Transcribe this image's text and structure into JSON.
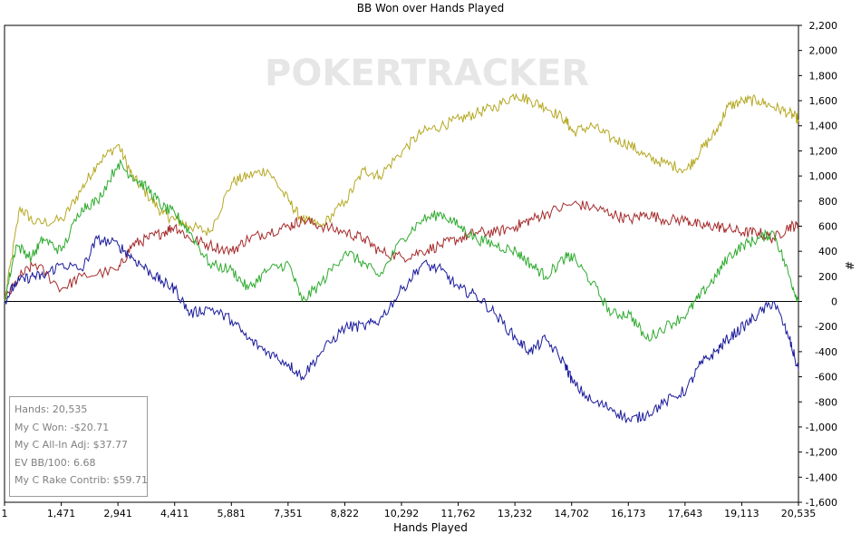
{
  "chart_data": {
    "type": "line",
    "title": "BB Won over Hands Played",
    "xlabel": "Hands Played",
    "ylabel": "#",
    "xlim": [
      1,
      20535
    ],
    "ylim": [
      -1600,
      2200
    ],
    "x_ticks": [
      "1",
      "1,471",
      "2,941",
      "4,411",
      "5,881",
      "7,351",
      "8,822",
      "10,292",
      "11,762",
      "13,232",
      "14,702",
      "16,173",
      "17,643",
      "19,113",
      "20,535"
    ],
    "y_ticks": [
      "2,200",
      "2,000",
      "1,800",
      "1,600",
      "1,400",
      "1,200",
      "1,000",
      "800",
      "600",
      "400",
      "200",
      "0",
      "-200",
      "-400",
      "-600",
      "-800",
      "-1,000",
      "-1,200",
      "-1,400",
      "-1,600"
    ],
    "grid": false,
    "watermark": "POKERTRACKER",
    "series": [
      {
        "color": "#b5a823",
        "x": [
          1,
          400,
          800,
          1500,
          2000,
          2400,
          2941,
          3300,
          3700,
          4100,
          4411,
          4800,
          5300,
          5881,
          6300,
          6800,
          7351,
          7700,
          8200,
          8822,
          9300,
          9700,
          10292,
          10800,
          11300,
          11762,
          12200,
          12700,
          13232,
          13600,
          14000,
          14500,
          14702,
          15200,
          15700,
          16173,
          16600,
          17100,
          17643,
          18000,
          18400,
          18700,
          19113,
          19500,
          19900,
          20300,
          20535
        ],
        "y": [
          0,
          750,
          620,
          650,
          900,
          1100,
          1250,
          1000,
          850,
          700,
          650,
          600,
          550,
          950,
          1000,
          1050,
          800,
          650,
          600,
          800,
          1050,
          1000,
          1200,
          1350,
          1400,
          1450,
          1500,
          1550,
          1650,
          1600,
          1550,
          1450,
          1350,
          1400,
          1300,
          1250,
          1150,
          1100,
          1050,
          1200,
          1350,
          1550,
          1600,
          1600,
          1550,
          1500,
          1450
        ]
      },
      {
        "color": "#a52a2a",
        "x": [
          1,
          400,
          800,
          1471,
          2000,
          2941,
          3300,
          3700,
          4100,
          4411,
          4800,
          5300,
          5881,
          6300,
          6800,
          7351,
          7700,
          8200,
          8822,
          9300,
          9700,
          10292,
          10800,
          11300,
          11762,
          12200,
          12700,
          13232,
          13600,
          14000,
          14702,
          15200,
          15700,
          16173,
          16600,
          17100,
          17643,
          18000,
          18400,
          18700,
          19113,
          19500,
          19900,
          20300,
          20535
        ],
        "y": [
          0,
          200,
          300,
          100,
          200,
          250,
          450,
          500,
          550,
          600,
          500,
          450,
          400,
          500,
          550,
          600,
          650,
          600,
          550,
          500,
          400,
          350,
          400,
          450,
          500,
          550,
          550,
          600,
          650,
          700,
          780,
          750,
          700,
          650,
          700,
          650,
          650,
          600,
          600,
          580,
          550,
          550,
          500,
          600,
          600
        ]
      },
      {
        "color": "#2eaa2e",
        "x": [
          1,
          300,
          700,
          1000,
          1471,
          2000,
          2400,
          2941,
          3300,
          3700,
          4100,
          4411,
          4800,
          5300,
          5881,
          6300,
          6800,
          7351,
          7700,
          8200,
          8822,
          9300,
          9700,
          10292,
          10800,
          11300,
          11762,
          12200,
          12700,
          13232,
          13600,
          14000,
          14500,
          14702,
          15200,
          15700,
          16173,
          16600,
          17100,
          17643,
          18000,
          18400,
          18700,
          19113,
          19500,
          19900,
          20300,
          20535
        ],
        "y": [
          0,
          450,
          350,
          500,
          400,
          750,
          800,
          1100,
          1000,
          900,
          750,
          700,
          550,
          300,
          250,
          100,
          250,
          300,
          0,
          150,
          400,
          300,
          200,
          500,
          650,
          700,
          600,
          500,
          450,
          400,
          300,
          200,
          350,
          350,
          150,
          -100,
          -100,
          -300,
          -200,
          -100,
          50,
          200,
          350,
          450,
          500,
          550,
          200,
          0
        ]
      },
      {
        "color": "#1a1a9c",
        "x": [
          1,
          300,
          700,
          1000,
          1471,
          2000,
          2400,
          2941,
          3300,
          3700,
          4100,
          4411,
          4800,
          5300,
          5881,
          6300,
          6800,
          7351,
          7700,
          8200,
          8822,
          9300,
          9700,
          10292,
          10800,
          11300,
          11762,
          12200,
          12700,
          13232,
          13600,
          14000,
          14500,
          14702,
          15200,
          15700,
          16173,
          16600,
          17100,
          17643,
          18000,
          18400,
          18700,
          19113,
          19500,
          19900,
          20300,
          20535
        ],
        "y": [
          0,
          150,
          200,
          200,
          300,
          250,
          500,
          450,
          350,
          250,
          150,
          100,
          -100,
          -50,
          -150,
          -300,
          -400,
          -500,
          -600,
          -400,
          -200,
          -200,
          -150,
          100,
          300,
          250,
          100,
          50,
          -100,
          -300,
          -400,
          -300,
          -500,
          -650,
          -800,
          -850,
          -950,
          -900,
          -800,
          -700,
          -500,
          -400,
          -300,
          -200,
          -100,
          0,
          -300,
          -550
        ]
      }
    ]
  },
  "stats": {
    "hands": "Hands: 20,535",
    "won": "My C Won: -$20.71",
    "allin": "My C All-In Adj: $37.77",
    "ev": "EV BB/100: 6.68",
    "rake": "My C Rake Contrib: $59.71"
  }
}
